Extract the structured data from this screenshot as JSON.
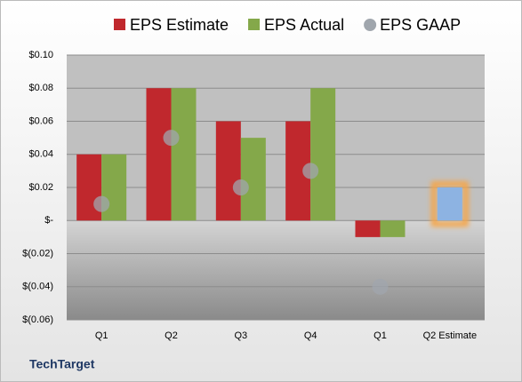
{
  "chart_data": {
    "type": "bar",
    "categories": [
      "Q1",
      "Q2",
      "Q3",
      "Q4",
      "Q1",
      "Q2 Estimate"
    ],
    "series": [
      {
        "name": "EPS Estimate",
        "color": "#c0282d",
        "values": [
          0.04,
          0.08,
          0.06,
          0.06,
          -0.01,
          null
        ]
      },
      {
        "name": "EPS Actual",
        "color": "#84a84a",
        "values": [
          0.04,
          0.08,
          0.05,
          0.08,
          -0.01,
          null
        ]
      },
      {
        "name": "EPS GAAP",
        "color": "#a0a6ad",
        "type": "scatter",
        "values": [
          0.01,
          0.05,
          0.02,
          0.03,
          -0.04,
          null
        ]
      },
      {
        "color": "#8db3e2",
        "values": [
          null,
          null,
          null,
          null,
          null,
          0.02
        ]
      }
    ],
    "ylim": [
      -0.06,
      0.1
    ],
    "yticks": [
      {
        "value": -0.06,
        "label": "$(0.06)"
      },
      {
        "value": -0.04,
        "label": "$(0.04)"
      },
      {
        "value": -0.02,
        "label": "$(0.02)"
      },
      {
        "value": 0,
        "label": "$-"
      },
      {
        "value": 0.02,
        "label": "$0.02"
      },
      {
        "value": 0.04,
        "label": "$0.04"
      },
      {
        "value": 0.06,
        "label": "$0.06"
      },
      {
        "value": 0.08,
        "label": "$0.08"
      },
      {
        "value": 0.1,
        "label": "$0.10"
      }
    ],
    "grid": true,
    "source": "TechTarget"
  }
}
